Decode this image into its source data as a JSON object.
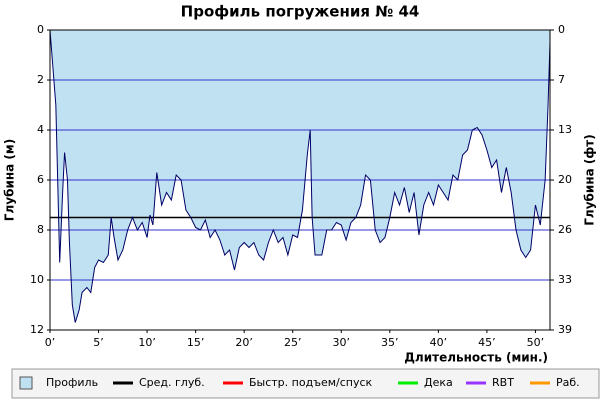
{
  "chart_data": {
    "type": "area",
    "title": "Профиль погружения № 44",
    "y_label": "Глубина (м)",
    "y2_label": "Глубина (фт)",
    "x_label": "Длительность (мин.)",
    "x": [
      0,
      0.3,
      0.6,
      1,
      1.3,
      1.5,
      1.8,
      2,
      2.3,
      2.6,
      3,
      3.3,
      3.8,
      4.2,
      4.6,
      5,
      5.5,
      6,
      6.3,
      6.6,
      7,
      7.5,
      8,
      8.5,
      9,
      9.5,
      10,
      10.3,
      10.6,
      11,
      11.5,
      12,
      12.5,
      13,
      13.5,
      14,
      14.5,
      15,
      15.5,
      16,
      16.5,
      17,
      17.5,
      18,
      18.5,
      19,
      19.5,
      20,
      20.5,
      21,
      21.5,
      22,
      22.5,
      23,
      23.5,
      24,
      24.5,
      25,
      25.5,
      26,
      26.5,
      26.8,
      27,
      27.3,
      28,
      28.5,
      29,
      29.5,
      30,
      30.5,
      31,
      31.5,
      32,
      32.5,
      33,
      33.5,
      34,
      34.5,
      35,
      35.5,
      36,
      36.5,
      37,
      37.5,
      38,
      38.5,
      39,
      39.5,
      40,
      40.5,
      41,
      41.5,
      42,
      42.5,
      43,
      43.5,
      44,
      44.5,
      45,
      45.5,
      46,
      46.5,
      47,
      47.5,
      48,
      48.5,
      49,
      49.5,
      50,
      50.5,
      51,
      51.3,
      51.5
    ],
    "series": [
      {
        "name": "Профиль",
        "color": "#bfe1f2",
        "line_color": "#000066",
        "values": [
          0,
          1.5,
          3,
          9.3,
          6.5,
          4.9,
          6,
          8.5,
          11,
          11.7,
          11.2,
          10.5,
          10.3,
          10.5,
          9.5,
          9.2,
          9.3,
          9.0,
          7.5,
          8.3,
          9.2,
          8.8,
          8.0,
          7.5,
          8.0,
          7.7,
          8.3,
          7.4,
          7.8,
          5.7,
          7.0,
          6.5,
          6.8,
          5.8,
          6.0,
          7.2,
          7.5,
          7.9,
          8.0,
          7.6,
          8.3,
          8.0,
          8.4,
          9.0,
          8.8,
          9.6,
          8.7,
          8.5,
          8.7,
          8.5,
          9.0,
          9.2,
          8.5,
          8.0,
          8.5,
          8.3,
          9.0,
          8.2,
          8.3,
          7.2,
          5.0,
          4.0,
          7.5,
          9.0,
          9.0,
          8.0,
          8.0,
          7.7,
          7.8,
          8.4,
          7.7,
          7.5,
          7.0,
          5.8,
          6.0,
          8.0,
          8.5,
          8.3,
          7.5,
          6.5,
          7.0,
          6.3,
          7.3,
          6.5,
          8.2,
          7.0,
          6.5,
          7.0,
          6.2,
          6.5,
          6.8,
          5.8,
          6.0,
          5.0,
          4.8,
          4.0,
          3.9,
          4.2,
          4.8,
          5.5,
          5.2,
          6.5,
          5.5,
          6.5,
          8.0,
          8.8,
          9.1,
          8.8,
          7.0,
          7.8,
          6.0,
          3.0,
          0.5
        ]
      }
    ],
    "lines": [
      {
        "name": "Сред. глуб.",
        "color": "#000000",
        "value": 7.5
      }
    ],
    "legend_extra": [
      {
        "name": "Быстр. подъем/спуск",
        "color": "#ff0000"
      },
      {
        "name": "Дека",
        "color": "#00ee00"
      },
      {
        "name": "RBT",
        "color": "#9933ff"
      },
      {
        "name": "Раб.",
        "color": "#ff9900"
      }
    ],
    "xlim": [
      0,
      51.5
    ],
    "xticks": [
      {
        "value": 0,
        "label": "0’"
      },
      {
        "value": 5,
        "label": "5’"
      },
      {
        "value": 10,
        "label": "10’"
      },
      {
        "value": 15,
        "label": "15’"
      },
      {
        "value": 20,
        "label": "20’"
      },
      {
        "value": 25,
        "label": "25’"
      },
      {
        "value": 30,
        "label": "30’"
      },
      {
        "value": 35,
        "label": "35’"
      },
      {
        "value": 40,
        "label": "40’"
      },
      {
        "value": 45,
        "label": "45’"
      },
      {
        "value": 50,
        "label": "50’"
      }
    ],
    "ylim": [
      0,
      12
    ],
    "y_inverted": true,
    "yticks": [
      0,
      2,
      4,
      6,
      8,
      10,
      12
    ],
    "y2lim": [
      0,
      39.37
    ],
    "y2ticks": [
      {
        "value": 0,
        "label": "0"
      },
      {
        "value": 6.56,
        "label": "7"
      },
      {
        "value": 13.12,
        "label": "13"
      },
      {
        "value": 19.69,
        "label": "20"
      },
      {
        "value": 26.25,
        "label": "26"
      },
      {
        "value": 32.81,
        "label": "33"
      },
      {
        "value": 39.37,
        "label": "39"
      }
    ],
    "grid": true,
    "grid_color": "#3333cc"
  }
}
